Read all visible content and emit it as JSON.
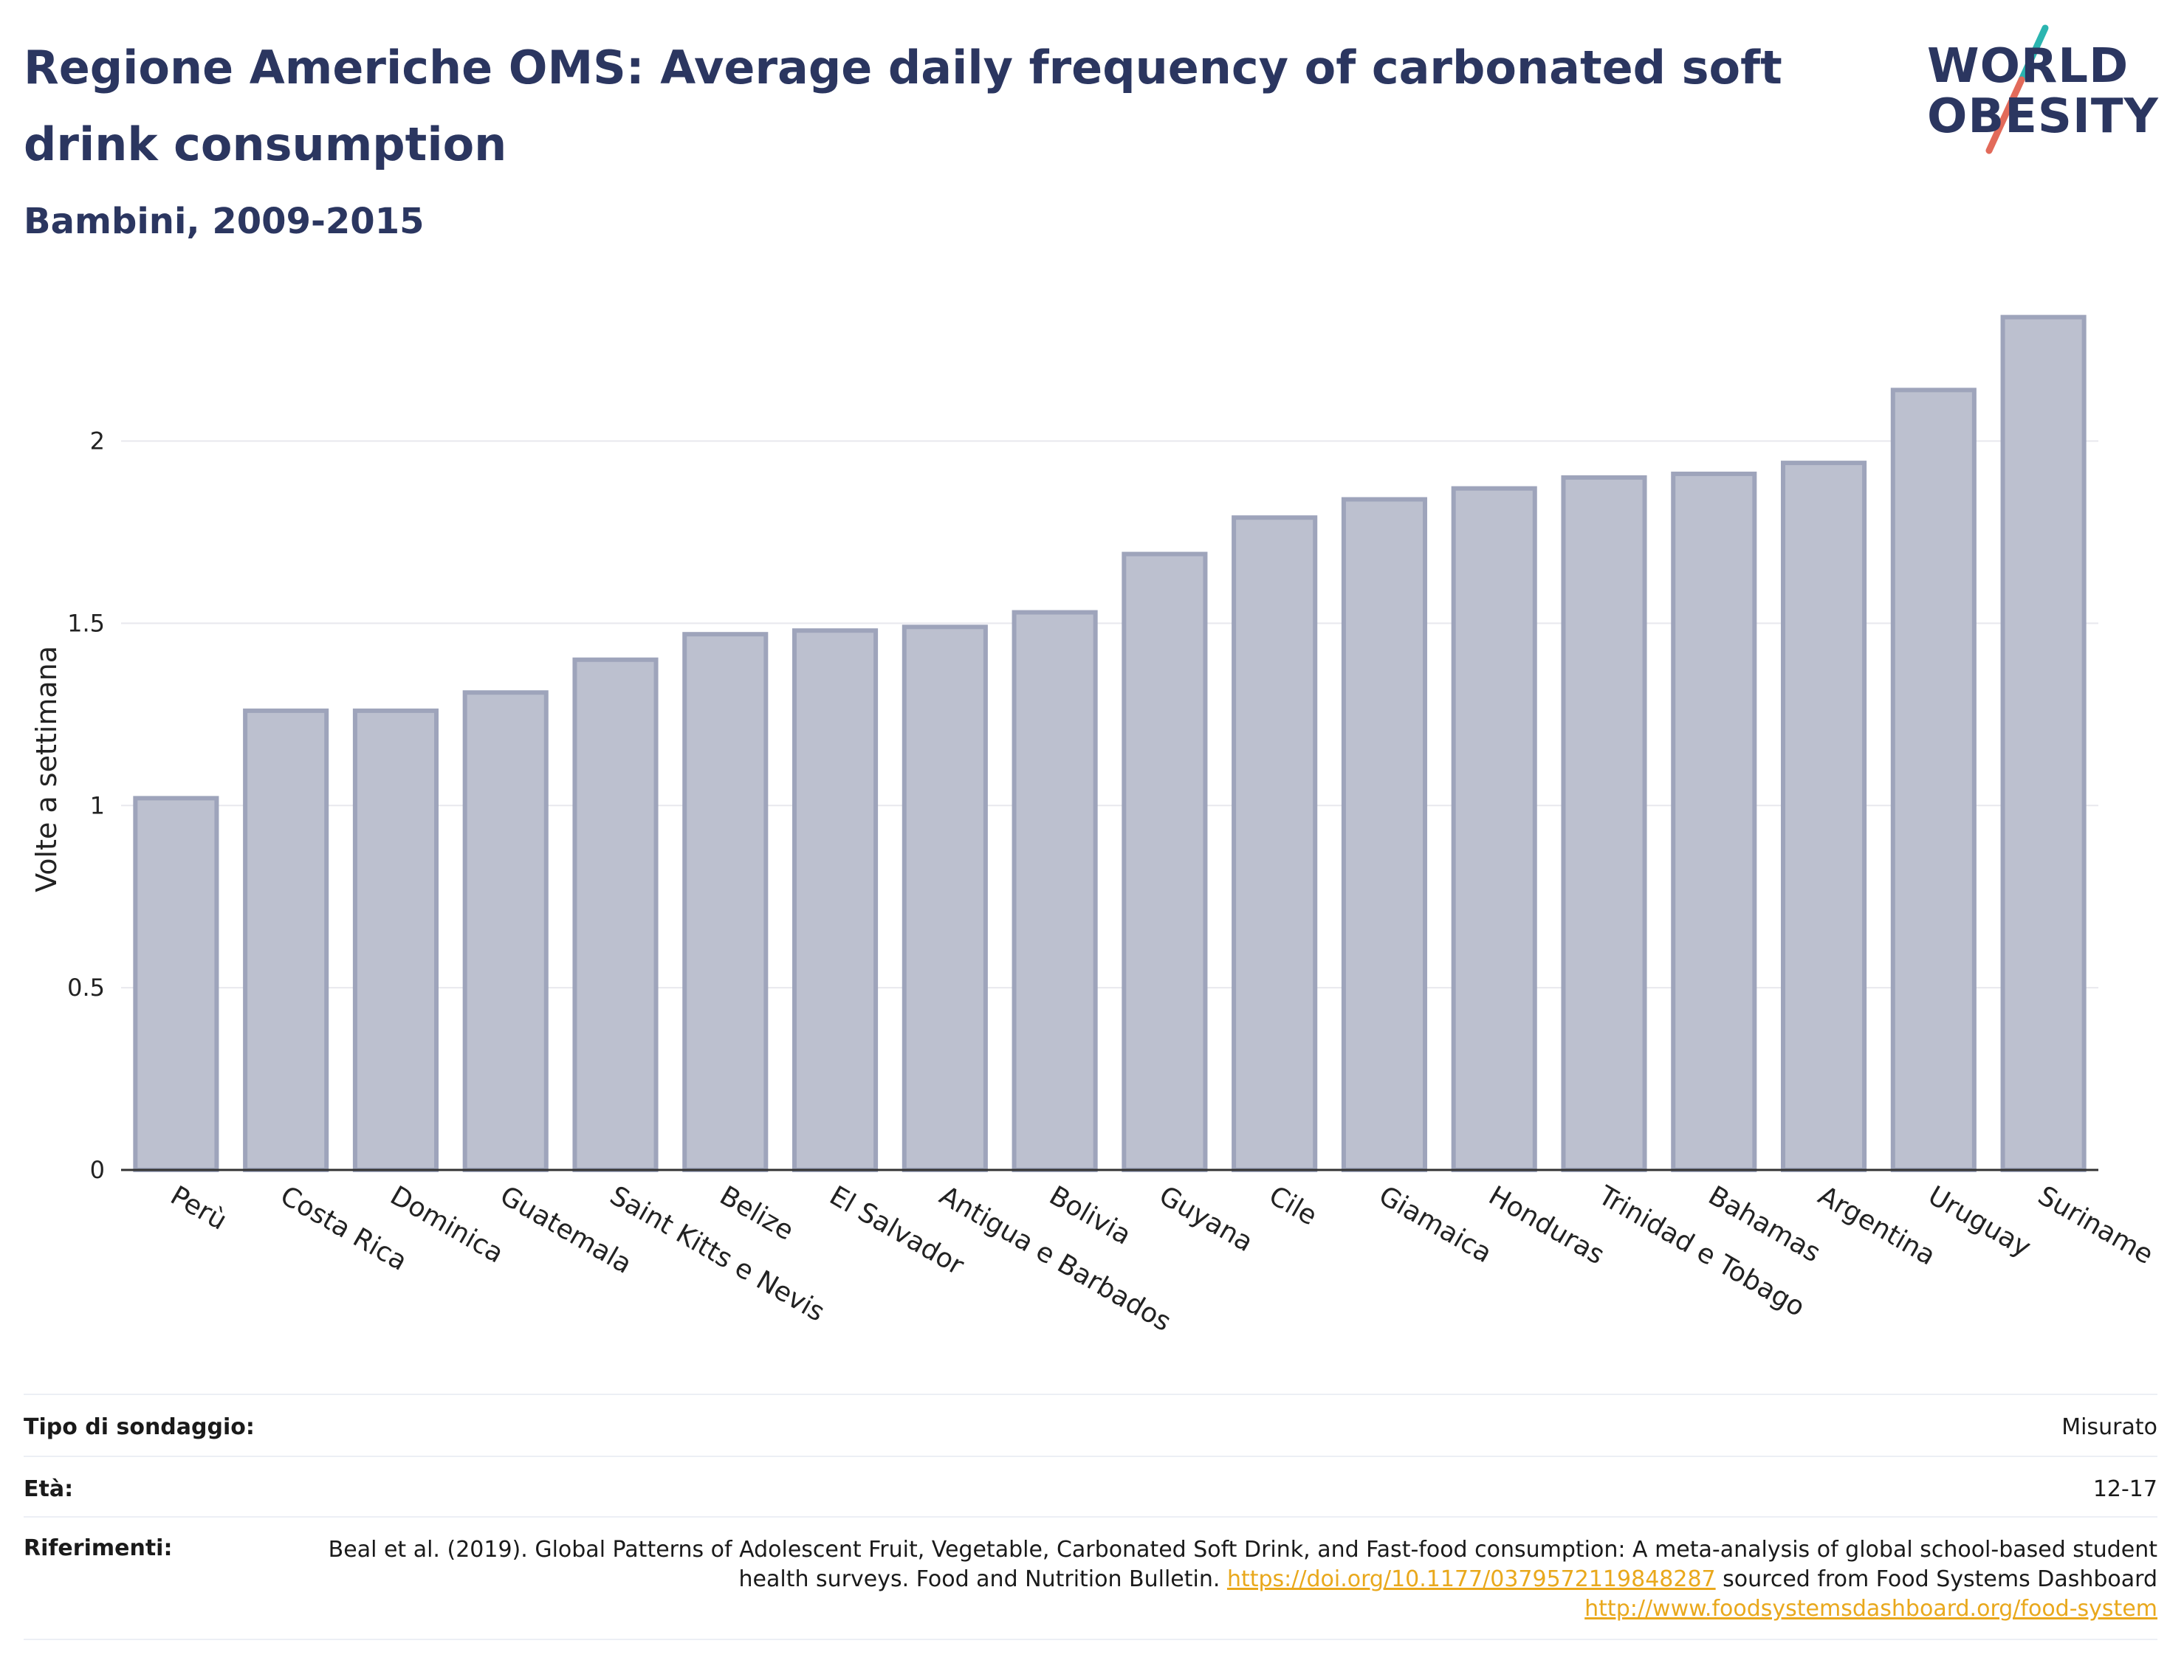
{
  "header": {
    "title": "Regione Americhe OMS: Average daily frequency of carbonated soft drink consumption",
    "subtitle": "Bambini, 2009-2015"
  },
  "logo": {
    "line1": "WORLD",
    "line2": "OBESITY",
    "slash_color_top": "#2bb5b0",
    "slash_color_bottom": "#e26a5a",
    "text_color": "#2b3660"
  },
  "chart_data": {
    "type": "bar",
    "ylabel": "Volte a settimana",
    "xlabel": "",
    "ylim": [
      0,
      2.4
    ],
    "yticks": [
      0,
      0.5,
      1,
      1.5,
      2
    ],
    "ytick_labels": [
      "0",
      "0.5",
      "1",
      "1.5",
      "2"
    ],
    "grid": true,
    "bar_color": "#bcc0cf",
    "bar_edge_color": "#9ea4bb",
    "categories": [
      "Perù",
      "Costa Rica",
      "Dominica",
      "Guatemala",
      "Saint Kitts e Nevis",
      "Belize",
      "El Salvador",
      "Antigua e Barbados",
      "Bolivia",
      "Guyana",
      "Cile",
      "Giamaica",
      "Honduras",
      "Trinidad e Tobago",
      "Bahamas",
      "Argentina",
      "Uruguay",
      "Suriname"
    ],
    "values": [
      1.02,
      1.26,
      1.26,
      1.31,
      1.4,
      1.47,
      1.48,
      1.49,
      1.53,
      1.69,
      1.79,
      1.84,
      1.87,
      1.9,
      1.91,
      1.94,
      2.14,
      2.34
    ]
  },
  "meta": {
    "survey_type_label": "Tipo di sondaggio:",
    "survey_type_value": "Misurato",
    "age_label": "Età:",
    "age_value": "12-17",
    "refs_label": "Riferimenti:",
    "refs_text_1": "Beal et al. (2019). Global Patterns of Adolescent Fruit, Vegetable, Carbonated Soft Drink, and Fast-food consumption: A meta-analysis of global school-based student health surveys. Food and Nutrition Bulletin.",
    "refs_link_1": "https://doi.org/10.1177/0379572119848287",
    "refs_text_2": "sourced from Food Systems Dashboard",
    "refs_link_2": "http://www.foodsystemsdashboard.org/food-system"
  }
}
